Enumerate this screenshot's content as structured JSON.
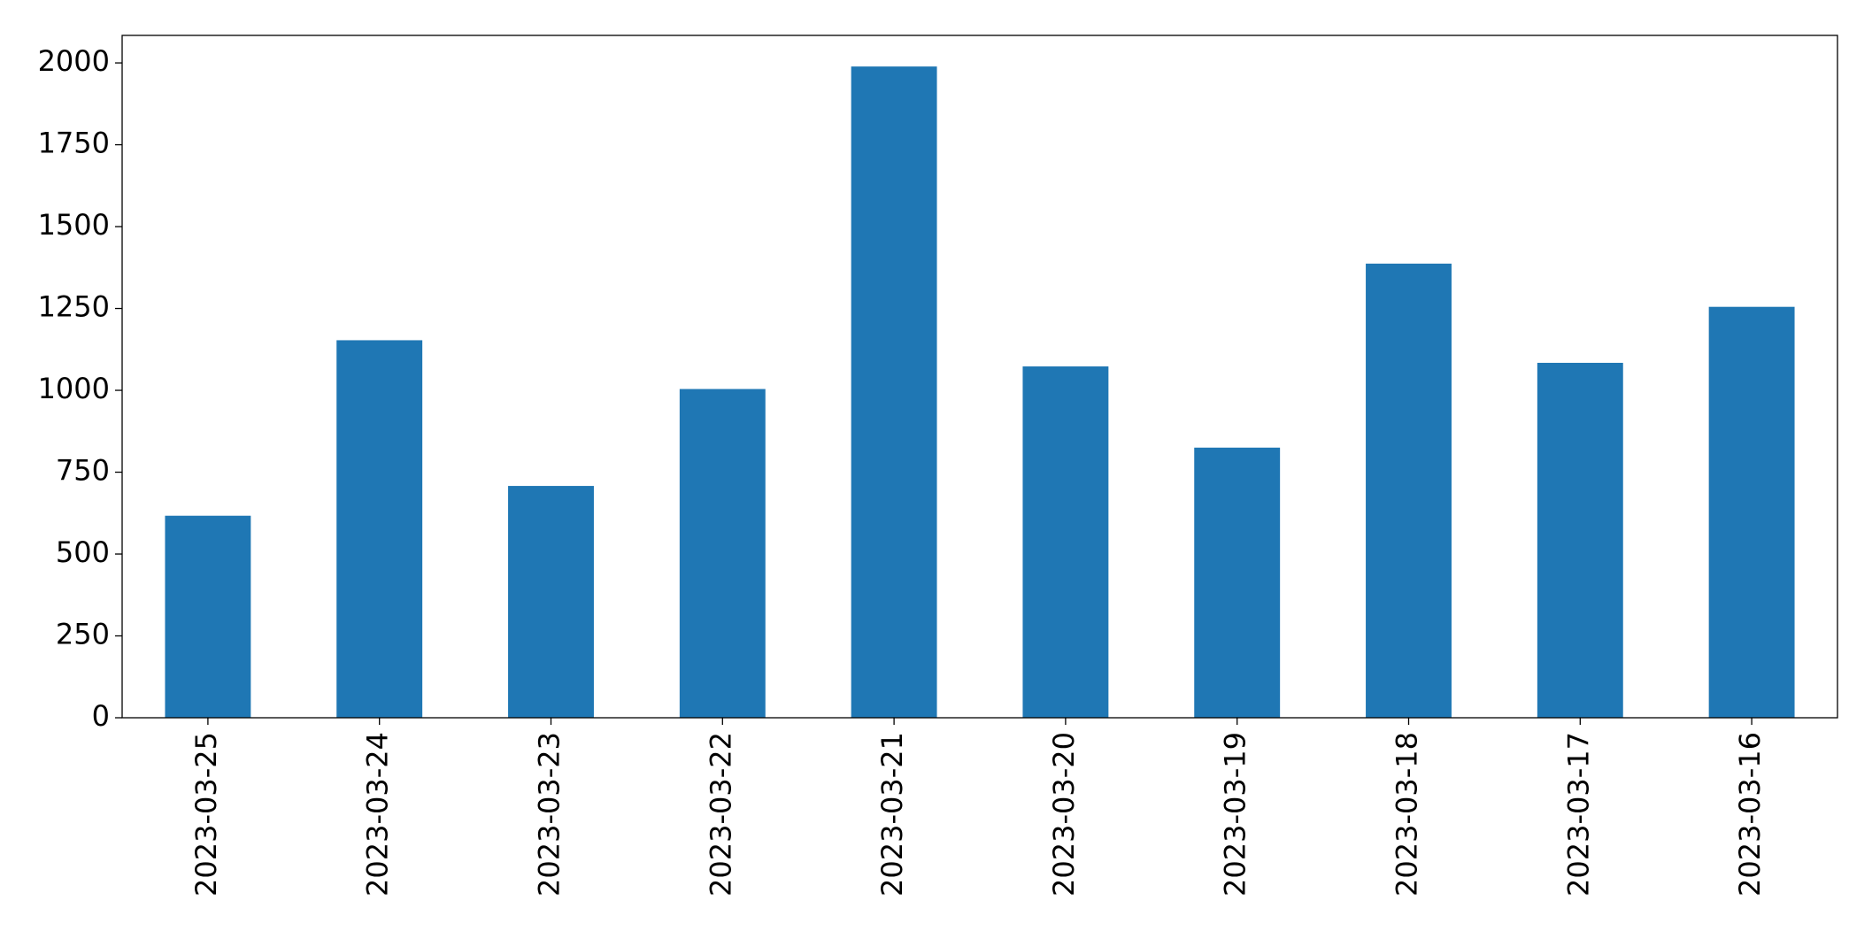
{
  "chart_data": {
    "type": "bar",
    "categories": [
      "2023-03-25",
      "2023-03-24",
      "2023-03-23",
      "2023-03-22",
      "2023-03-21",
      "2023-03-20",
      "2023-03-19",
      "2023-03-18",
      "2023-03-17",
      "2023-03-16"
    ],
    "values": [
      617,
      1153,
      708,
      1004,
      1989,
      1073,
      825,
      1387,
      1084,
      1255
    ],
    "color": "#1f77b4",
    "ylim": [
      0,
      2084
    ],
    "yticks": [
      0,
      250,
      500,
      750,
      1000,
      1250,
      1500,
      1750,
      2000
    ],
    "grid": false
  }
}
